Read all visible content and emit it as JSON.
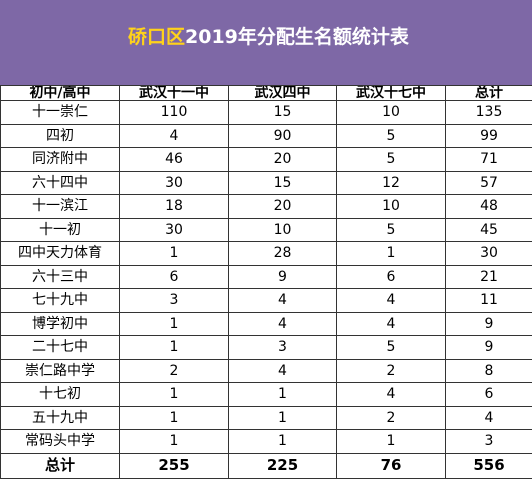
{
  "title": {
    "highlight": "硚口区",
    "rest": "2019年分配生名额统计表"
  },
  "colors": {
    "header_bg": "#7e68a6",
    "title_highlight": "#ffd21a",
    "title_text": "#ffffff"
  },
  "table": {
    "headers": [
      "初中/高中",
      "武汉十一中",
      "武汉四中",
      "武汉十七中",
      "总计"
    ],
    "rows": [
      [
        "十一崇仁",
        "110",
        "15",
        "10",
        "135"
      ],
      [
        "四初",
        "4",
        "90",
        "5",
        "99"
      ],
      [
        "同济附中",
        "46",
        "20",
        "5",
        "71"
      ],
      [
        "六十四中",
        "30",
        "15",
        "12",
        "57"
      ],
      [
        "十一滨江",
        "18",
        "20",
        "10",
        "48"
      ],
      [
        "十一初",
        "30",
        "10",
        "5",
        "45"
      ],
      [
        "四中天力体育",
        "1",
        "28",
        "1",
        "30"
      ],
      [
        "六十三中",
        "6",
        "9",
        "6",
        "21"
      ],
      [
        "七十九中",
        "3",
        "4",
        "4",
        "11"
      ],
      [
        "博学初中",
        "1",
        "4",
        "4",
        "9"
      ],
      [
        "二十七中",
        "1",
        "3",
        "5",
        "9"
      ],
      [
        "崇仁路中学",
        "2",
        "4",
        "2",
        "8"
      ],
      [
        "十七初",
        "1",
        "1",
        "4",
        "6"
      ],
      [
        "五十九中",
        "1",
        "1",
        "2",
        "4"
      ],
      [
        "常码头中学",
        "1",
        "1",
        "1",
        "3"
      ]
    ],
    "total": [
      "总计",
      "255",
      "225",
      "76",
      "556"
    ]
  }
}
